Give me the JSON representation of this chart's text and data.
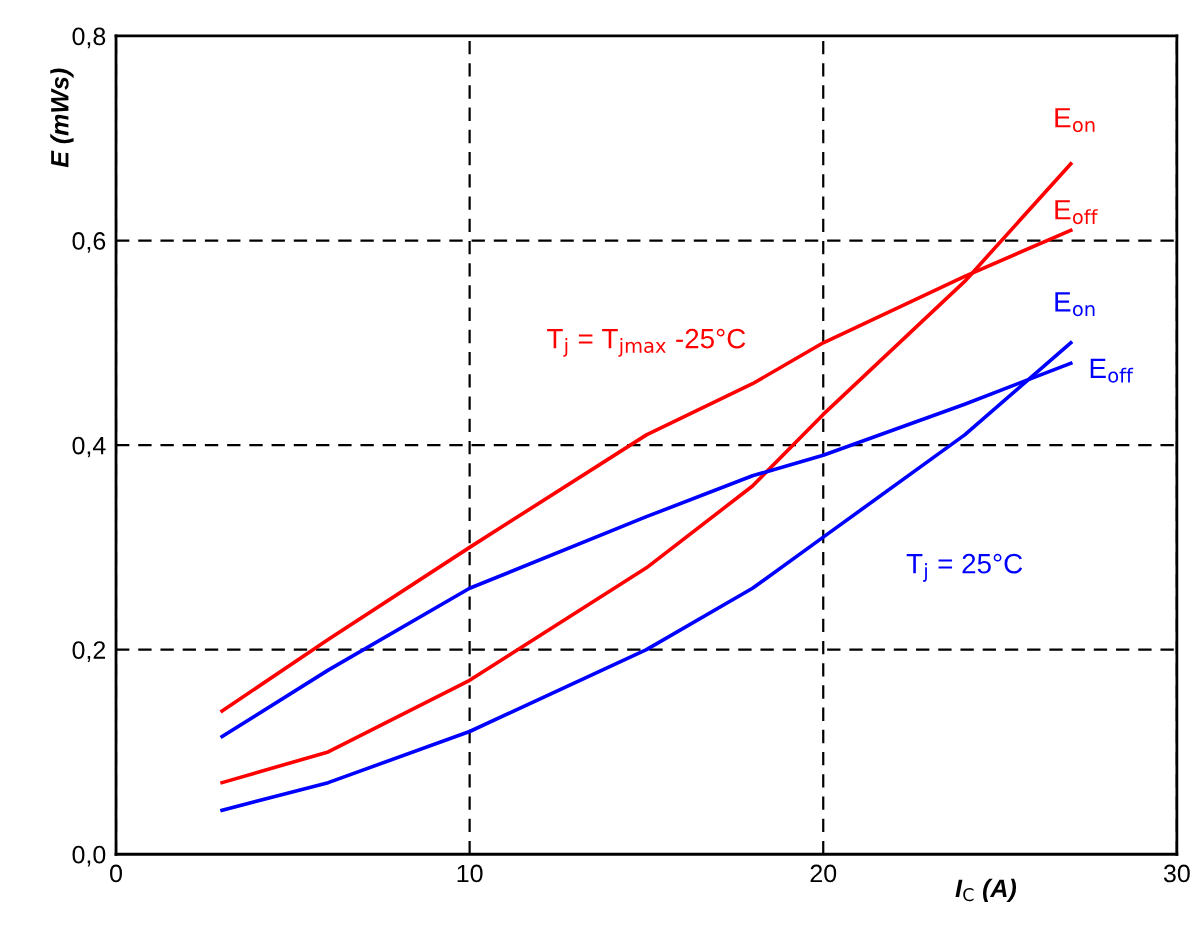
{
  "chart_data": {
    "type": "line",
    "xlabel": "I$_{C}$ (A)",
    "ylabel": "E (mWs)",
    "xlim": [
      0,
      30
    ],
    "xticks": [
      0,
      10,
      20,
      30
    ],
    "ylim": [
      0,
      0.8
    ],
    "yticks": [
      {
        "value": 0,
        "label": "0,0"
      },
      {
        "value": 0.2,
        "label": "0,2"
      },
      {
        "value": 0.4,
        "label": "0,4"
      },
      {
        "value": 0.6,
        "label": "0,6"
      },
      {
        "value": 0.8,
        "label": "0,8"
      }
    ],
    "x": [
      3,
      6,
      10,
      15,
      18,
      20,
      24,
      27
    ],
    "series": [
      {
        "name": "E$_{on}$",
        "color": "#ff0000",
        "values": [
          0.07,
          0.1,
          0.17,
          0.28,
          0.36,
          0.43,
          0.56,
          0.675
        ]
      },
      {
        "name": "E$_{off}$",
        "color": "#ff0000",
        "values": [
          0.14,
          0.21,
          0.3,
          0.41,
          0.46,
          0.5,
          0.565,
          0.61
        ]
      },
      {
        "name": "E$_{on}$",
        "color": "#0000ff",
        "values": [
          0.043,
          0.07,
          0.12,
          0.2,
          0.26,
          0.31,
          0.41,
          0.5
        ]
      },
      {
        "name": "E$_{off}$",
        "color": "#0000ff",
        "values": [
          0.115,
          0.18,
          0.26,
          0.33,
          0.37,
          0.39,
          0.44,
          0.48
        ]
      }
    ],
    "annotations": [
      "T$_{j}$ = T$_{jmax}$ -25°C",
      "T$_{j}$ = 25°C"
    ],
    "grid": true,
    "marker": "none",
    "line_style": "solid",
    "legend": false
  }
}
